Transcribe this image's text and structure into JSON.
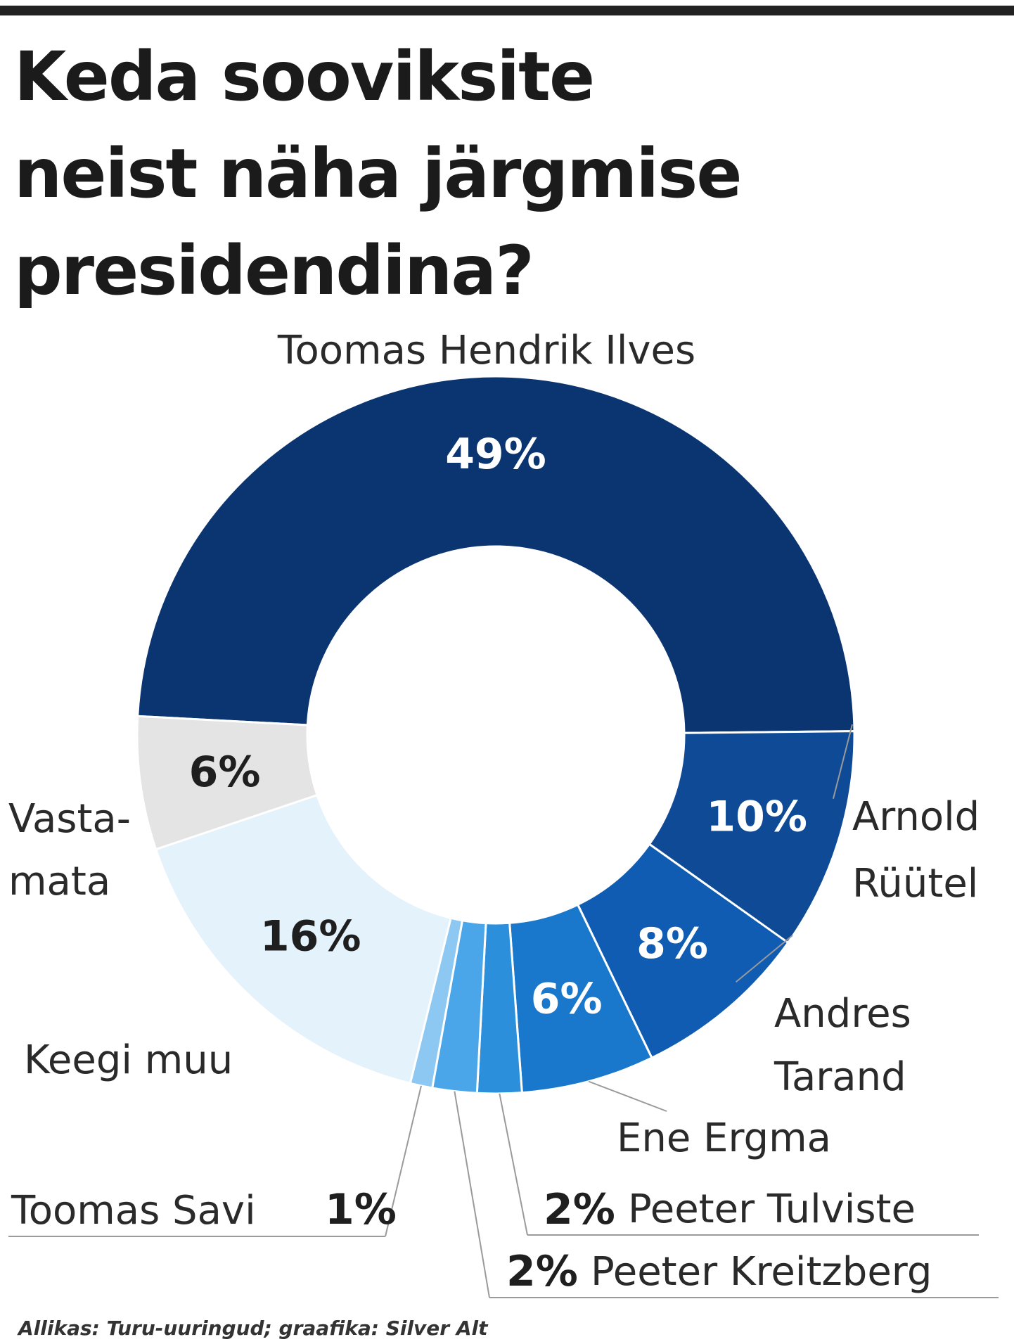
{
  "title_lines": [
    "Keda sooviksite",
    "neist näha järgmise",
    "presidendina?"
  ],
  "source": "Allikas: Turu-uuringud; graafika: Silver Alt",
  "chart_data": {
    "type": "pie",
    "title": "Keda sooviksite neist näha järgmise presidendina?",
    "donut": true,
    "slices": [
      {
        "name": "Toomas Hendrik Ilves",
        "value": 49,
        "value_label": "49%",
        "color": "#0b3570"
      },
      {
        "name": "Arnold Rüütel",
        "value": 10,
        "value_label": "10%",
        "color": "#0e4a95"
      },
      {
        "name": "Andres Tarand",
        "value": 8,
        "value_label": "8%",
        "color": "#0f5cb2"
      },
      {
        "name": "Ene Ergma",
        "value": 6,
        "value_label": "6%",
        "color": "#1a78cc"
      },
      {
        "name": "Peeter Tulviste",
        "value": 2,
        "value_label": "2%",
        "color": "#2c8fdc"
      },
      {
        "name": "Peeter Kreitzberg",
        "value": 2,
        "value_label": "2%",
        "color": "#4aa6e8"
      },
      {
        "name": "Toomas Savi",
        "value": 1,
        "value_label": "1%",
        "color": "#8cc8f2"
      },
      {
        "name": "Keegi muu",
        "value": 16,
        "value_label": "16%",
        "color": "#e4f2fc"
      },
      {
        "name": "Vastamata",
        "value": 6,
        "value_label": "6%",
        "color": "#e4e4e4"
      }
    ],
    "labels": {
      "ilves": "Toomas Hendrik Ilves",
      "ruutel": [
        "Arnold",
        "Rüütel"
      ],
      "tarand": [
        "Andres",
        "Tarand"
      ],
      "ergma": "Ene Ergma",
      "tulviste": "Peeter Tulviste",
      "kreitzberg": "Peeter Kreitzberg",
      "savi": "Toomas Savi",
      "muu": "Keegi muu",
      "vastamata": [
        "Vasta-",
        "mata"
      ]
    }
  }
}
